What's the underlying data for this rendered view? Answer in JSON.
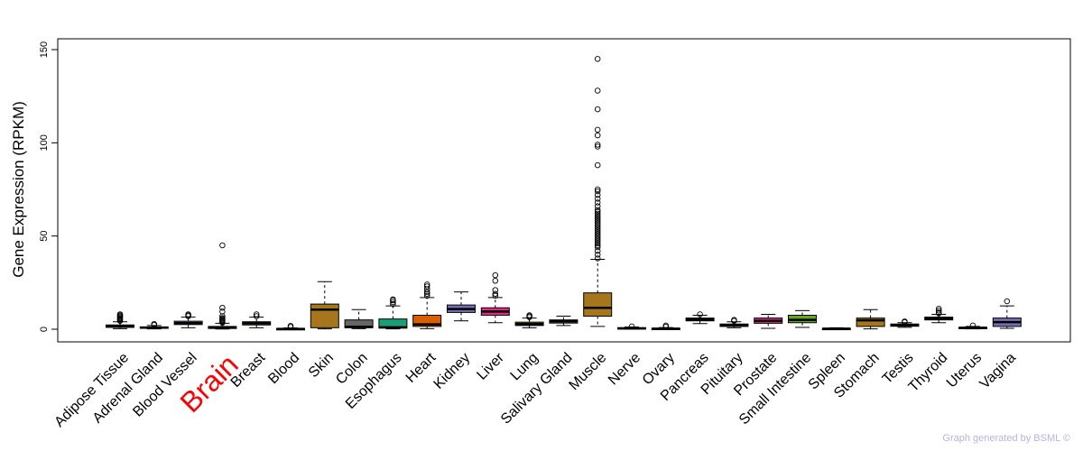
{
  "chart_data": {
    "type": "box",
    "ylabel": "Gene Expression (RPKM)",
    "ylim": [
      -5,
      150
    ],
    "yticks": [
      0,
      50,
      100,
      150
    ],
    "grid": false,
    "highlight_category": "Brain",
    "highlight_color": "#ff0000",
    "categories": [
      "Adipose Tissue",
      "Adrenal Gland",
      "Blood Vessel",
      "Brain",
      "Breast",
      "Blood",
      "Skin",
      "Colon",
      "Esophagus",
      "Heart",
      "Kidney",
      "Liver",
      "Lung",
      "Salivary Gland",
      "Muscle",
      "Nerve",
      "Ovary",
      "Pancreas",
      "Pituitary",
      "Prostate",
      "Small Intestine",
      "Spleen",
      "Stomach",
      "Testis",
      "Thyroid",
      "Uterus",
      "Vagina"
    ],
    "boxes": [
      {
        "name": "Adipose Tissue",
        "color": "#4d4d4d",
        "whisker_low": 0.3,
        "q1": 1.0,
        "median": 1.5,
        "q3": 2.3,
        "whisker_high": 4.0,
        "outliers": [
          4.5,
          5,
          5.5,
          6,
          6.5,
          7,
          7.5,
          8
        ]
      },
      {
        "name": "Adrenal Gland",
        "color": "#4d4d4d",
        "whisker_low": 0.2,
        "q1": 0.6,
        "median": 0.9,
        "q3": 1.2,
        "whisker_high": 2.0,
        "outliers": [
          2.3,
          2.8
        ]
      },
      {
        "name": "Blood Vessel",
        "color": "#8da0cb",
        "whisker_low": 0.8,
        "q1": 2.5,
        "median": 3.3,
        "q3": 4.3,
        "whisker_high": 6.5,
        "outliers": [
          7,
          7.5,
          8
        ]
      },
      {
        "name": "Brain",
        "color": "#e7298a",
        "whisker_low": 0.1,
        "q1": 0.4,
        "median": 0.9,
        "q3": 1.5,
        "whisker_high": 3.2,
        "outliers": [
          3.5,
          4,
          4.5,
          5,
          5.5,
          6,
          7,
          9.5,
          11.5,
          45
        ]
      },
      {
        "name": "Breast",
        "color": "#66a61e",
        "whisker_low": 0.8,
        "q1": 2.3,
        "median": 3.2,
        "q3": 4.0,
        "whisker_high": 6.5,
        "outliers": [
          7,
          8
        ]
      },
      {
        "name": "Blood",
        "color": "#4d4d4d",
        "whisker_low": 0.0,
        "q1": 0.1,
        "median": 0.2,
        "q3": 0.35,
        "whisker_high": 0.7,
        "outliers": [
          1.2,
          1.8
        ]
      },
      {
        "name": "Skin",
        "color": "#a6761d",
        "whisker_low": 0.2,
        "q1": 0.8,
        "median": 10.5,
        "q3": 13.5,
        "whisker_high": 25.5,
        "outliers": []
      },
      {
        "name": "Colon",
        "color": "#666666",
        "whisker_low": 0.3,
        "q1": 0.8,
        "median": 1.3,
        "q3": 5.0,
        "whisker_high": 10.5,
        "outliers": []
      },
      {
        "name": "Esophagus",
        "color": "#1b9e77",
        "whisker_low": 0.2,
        "q1": 0.6,
        "median": 1.0,
        "q3": 5.5,
        "whisker_high": 12.5,
        "outliers": [
          13.5,
          14.5,
          15.5,
          16
        ]
      },
      {
        "name": "Heart",
        "color": "#d95f02",
        "whisker_low": 0.3,
        "q1": 1.5,
        "median": 2.6,
        "q3": 7.5,
        "whisker_high": 17,
        "outliers": [
          18,
          19,
          20,
          21.5,
          23,
          24
        ]
      },
      {
        "name": "Kidney",
        "color": "#7570b3",
        "whisker_low": 4.5,
        "q1": 9.0,
        "median": 10.8,
        "q3": 13.0,
        "whisker_high": 20,
        "outliers": []
      },
      {
        "name": "Liver",
        "color": "#e7298a",
        "whisker_low": 3.5,
        "q1": 7.5,
        "median": 9.5,
        "q3": 11.5,
        "whisker_high": 17,
        "outliers": [
          18,
          19,
          21,
          26,
          29
        ]
      },
      {
        "name": "Lung",
        "color": "#66a61e",
        "whisker_low": 0.8,
        "q1": 2.0,
        "median": 2.8,
        "q3": 3.8,
        "whisker_high": 6.0,
        "outliers": [
          6.5,
          7,
          7.5
        ]
      },
      {
        "name": "Salivary Gland",
        "color": "#666666",
        "whisker_low": 2.0,
        "q1": 3.3,
        "median": 4.3,
        "q3": 5.0,
        "whisker_high": 7.0,
        "outliers": []
      },
      {
        "name": "Muscle",
        "color": "#a6761d",
        "whisker_low": 1.5,
        "q1": 7.0,
        "median": 11.5,
        "q3": 19.5,
        "whisker_high": 37.5,
        "outliers": [
          38,
          40,
          42,
          44,
          45,
          46,
          47,
          48,
          49,
          50,
          51,
          52,
          53,
          54,
          55,
          56,
          57,
          58,
          59,
          60,
          61,
          62,
          63,
          64,
          66,
          68,
          70,
          72,
          74,
          75,
          88,
          98,
          99,
          104,
          107,
          118,
          128,
          145
        ]
      },
      {
        "name": "Nerve",
        "color": "#4d4d4d",
        "whisker_low": 0.1,
        "q1": 0.3,
        "median": 0.5,
        "q3": 0.8,
        "whisker_high": 1.2,
        "outliers": [
          1.5
        ]
      },
      {
        "name": "Ovary",
        "color": "#4d4d4d",
        "whisker_low": 0.0,
        "q1": 0.15,
        "median": 0.3,
        "q3": 0.5,
        "whisker_high": 0.9,
        "outliers": [
          1.4,
          2.0
        ]
      },
      {
        "name": "Pancreas",
        "color": "#666666",
        "whisker_low": 3.0,
        "q1": 4.5,
        "median": 5.2,
        "q3": 6.0,
        "whisker_high": 7.5,
        "outliers": [
          8
        ]
      },
      {
        "name": "Pituitary",
        "color": "#4d4d4d",
        "whisker_low": 0.8,
        "q1": 1.5,
        "median": 2.0,
        "q3": 2.8,
        "whisker_high": 4.0,
        "outliers": [
          4.5,
          5
        ]
      },
      {
        "name": "Prostate",
        "color": "#e7298a",
        "whisker_low": 0.5,
        "q1": 3.2,
        "median": 4.5,
        "q3": 6.0,
        "whisker_high": 8.0,
        "outliers": []
      },
      {
        "name": "Small Intestine",
        "color": "#66a61e",
        "whisker_low": 1.0,
        "q1": 3.5,
        "median": 5.0,
        "q3": 7.5,
        "whisker_high": 10.0,
        "outliers": []
      },
      {
        "name": "Spleen",
        "color": "#4d4d4d",
        "whisker_low": 0.0,
        "q1": 0.15,
        "median": 0.3,
        "q3": 0.45,
        "whisker_high": 0.8,
        "outliers": []
      },
      {
        "name": "Stomach",
        "color": "#a6761d",
        "whisker_low": 0.2,
        "q1": 1.5,
        "median": 4.8,
        "q3": 6.0,
        "whisker_high": 10.5,
        "outliers": []
      },
      {
        "name": "Testis",
        "color": "#666666",
        "whisker_low": 1.0,
        "q1": 1.6,
        "median": 2.2,
        "q3": 2.8,
        "whisker_high": 3.5,
        "outliers": [
          3.8,
          4.2
        ]
      },
      {
        "name": "Thyroid",
        "color": "#4d4d4d",
        "whisker_low": 3.5,
        "q1": 5.0,
        "median": 5.8,
        "q3": 6.5,
        "whisker_high": 8.0,
        "outliers": [
          8.5,
          9,
          10,
          11
        ]
      },
      {
        "name": "Uterus",
        "color": "#4d4d4d",
        "whisker_low": 0.2,
        "q1": 0.5,
        "median": 0.8,
        "q3": 1.0,
        "whisker_high": 1.5,
        "outliers": [
          2.0
        ]
      },
      {
        "name": "Vagina",
        "color": "#7570b3",
        "whisker_low": 0.5,
        "q1": 1.5,
        "median": 3.8,
        "q3": 6.0,
        "whisker_high": 12.5,
        "outliers": [
          15
        ]
      }
    ]
  },
  "watermark": {
    "text": "Graph generated by BSML ©",
    "color": "#b4b4e0"
  }
}
